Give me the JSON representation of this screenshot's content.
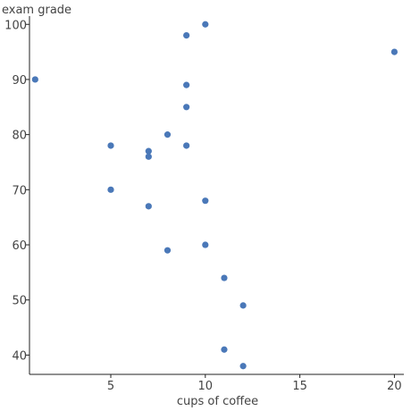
{
  "chart_data": {
    "type": "scatter",
    "title": "",
    "xlabel": "cups of coffee",
    "ylabel": "exam grade",
    "xlim": [
      0.7,
      20.5
    ],
    "ylim": [
      36.5,
      101.5
    ],
    "xticks": [
      5,
      10,
      15,
      20
    ],
    "yticks": [
      40,
      50,
      60,
      70,
      80,
      90,
      100
    ],
    "grid": false,
    "point_color": "#4a78b8",
    "points": [
      {
        "x": 1,
        "y": 90
      },
      {
        "x": 5,
        "y": 78
      },
      {
        "x": 5,
        "y": 70
      },
      {
        "x": 7,
        "y": 77
      },
      {
        "x": 7,
        "y": 76
      },
      {
        "x": 7,
        "y": 67
      },
      {
        "x": 8,
        "y": 80
      },
      {
        "x": 8,
        "y": 59
      },
      {
        "x": 9,
        "y": 98
      },
      {
        "x": 9,
        "y": 89
      },
      {
        "x": 9,
        "y": 85
      },
      {
        "x": 9,
        "y": 78
      },
      {
        "x": 10,
        "y": 100
      },
      {
        "x": 10,
        "y": 68
      },
      {
        "x": 10,
        "y": 60
      },
      {
        "x": 11,
        "y": 54
      },
      {
        "x": 11,
        "y": 41
      },
      {
        "x": 12,
        "y": 49
      },
      {
        "x": 12,
        "y": 38
      },
      {
        "x": 20,
        "y": 95
      }
    ]
  }
}
